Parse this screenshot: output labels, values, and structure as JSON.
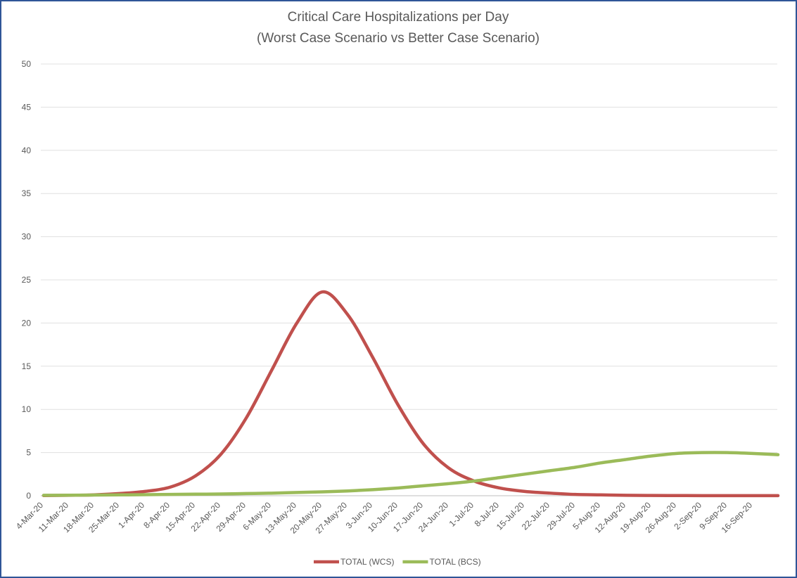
{
  "chart_data": {
    "type": "line",
    "title": "Critical Care Hospitalizations per Day",
    "subtitle": "(Worst Case Scenario vs Better Case Scenario)",
    "categories": [
      "4-Mar-20",
      "11-Mar-20",
      "18-Mar-20",
      "25-Mar-20",
      "1-Apr-20",
      "8-Apr-20",
      "15-Apr-20",
      "22-Apr-20",
      "29-Apr-20",
      "6-May-20",
      "13-May-20",
      "20-May-20",
      "27-May-20",
      "3-Jun-20",
      "10-Jun-20",
      "17-Jun-20",
      "24-Jun-20",
      "1-Jul-20",
      "8-Jul-20",
      "15-Jul-20",
      "22-Jul-20",
      "29-Jul-20",
      "5-Aug-20",
      "12-Aug-20",
      "19-Aug-20",
      "26-Aug-20",
      "2-Sep-20",
      "9-Sep-20",
      "16-Sep-20",
      null
    ],
    "series": [
      {
        "name": "TOTAL (WCS)",
        "color": "#c0504d",
        "values": [
          0.02,
          0.05,
          0.1,
          0.25,
          0.5,
          1.0,
          2.3,
          4.8,
          9.0,
          14.5,
          20.0,
          23.6,
          21.0,
          16.0,
          10.5,
          6.0,
          3.2,
          1.7,
          0.9,
          0.5,
          0.3,
          0.15,
          0.1,
          0.05,
          0.03,
          0.02,
          0.01,
          0.01,
          0.01,
          0.01
        ]
      },
      {
        "name": "TOTAL (BCS)",
        "color": "#9bbb59",
        "values": [
          0.05,
          0.06,
          0.08,
          0.1,
          0.12,
          0.15,
          0.18,
          0.2,
          0.25,
          0.3,
          0.38,
          0.45,
          0.55,
          0.7,
          0.9,
          1.15,
          1.4,
          1.7,
          2.1,
          2.5,
          2.9,
          3.3,
          3.8,
          4.2,
          4.6,
          4.9,
          5.0,
          5.0,
          4.9,
          4.75
        ]
      }
    ],
    "ylim": [
      0,
      50
    ],
    "yticks": [
      0,
      5,
      10,
      15,
      20,
      25,
      30,
      35,
      40,
      45,
      50
    ],
    "grid": true,
    "legend": "bottom"
  }
}
